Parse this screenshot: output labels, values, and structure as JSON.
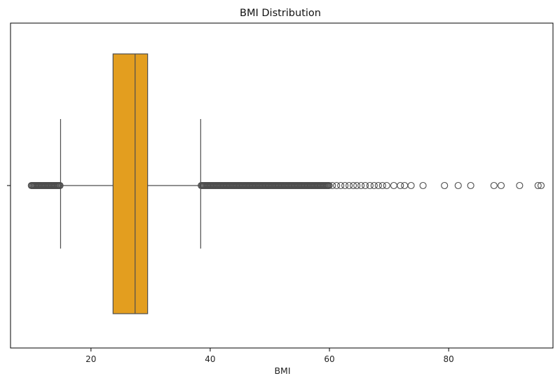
{
  "chart_data": {
    "type": "box",
    "orientation": "horizontal",
    "title": "BMI Distribution",
    "xlabel": "BMI",
    "ylabel": "",
    "xlim": [
      6.5,
      97.5
    ],
    "xticks": [
      20,
      40,
      60,
      80
    ],
    "xtick_labels": [
      "20",
      "40",
      "60",
      "80"
    ],
    "ytick_labels": [
      ""
    ],
    "grid": false,
    "legend": "none",
    "box": {
      "min_whisker": 14.9,
      "q1": 23.7,
      "median": 27.4,
      "q3": 29.5,
      "max_whisker": 38.4
    },
    "outliers_low_range": [
      10.0,
      14.8
    ],
    "outliers_high_dense_range": [
      38.5,
      60.0
    ],
    "outliers_high_sparse": [
      60.5,
      61.2,
      61.9,
      62.6,
      63.3,
      64.0,
      64.6,
      65.3,
      66.0,
      66.8,
      67.5,
      68.2,
      68.9,
      69.6,
      70.8,
      71.9,
      72.6,
      73.7,
      75.7,
      79.3,
      81.6,
      83.7,
      87.6,
      88.8,
      91.9,
      95.0,
      95.5
    ],
    "colors": {
      "box_fill": "#e39e1f",
      "line": "#4d4d4d",
      "outlier_edge": "#4d4d4d",
      "axes": "#000000"
    }
  }
}
